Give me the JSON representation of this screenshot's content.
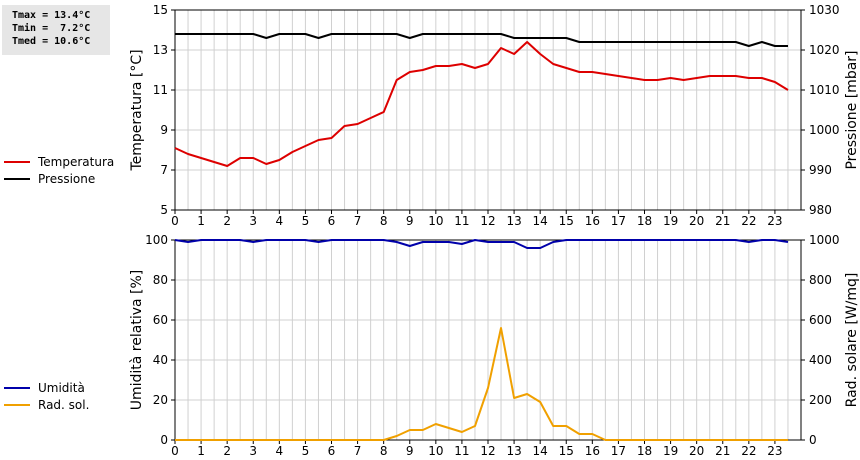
{
  "stats": {
    "tmax": "Tmax = 13.4°C",
    "tmin": "Tmin =  7.2°C",
    "tmed": "Tmed = 10.6°C"
  },
  "legend_top": [
    {
      "label": "Temperatura",
      "color": "#dd0000"
    },
    {
      "label": "Pressione",
      "color": "#000000"
    }
  ],
  "legend_bottom": [
    {
      "label": "Umidità",
      "color": "#0000aa"
    },
    {
      "label": "Rad. sol.",
      "color": "#f0a000"
    }
  ],
  "chart_data": [
    {
      "type": "line",
      "x_ticks": [
        "0",
        "1",
        "2",
        "3",
        "4",
        "5",
        "6",
        "7",
        "8",
        "9",
        "10",
        "11",
        "12",
        "13",
        "14",
        "15",
        "16",
        "17",
        "18",
        "19",
        "20",
        "21",
        "22",
        "23"
      ],
      "xlim": [
        0,
        24
      ],
      "ylabel_left": "Temperatura [°C]",
      "ylabel_right": "Pressione [mbar]",
      "ylim_left": [
        5,
        15
      ],
      "ylim_right": [
        980,
        1030
      ],
      "yticks_left": [
        5,
        7,
        9,
        11,
        13,
        15
      ],
      "yticks_right": [
        980,
        990,
        1000,
        1010,
        1020,
        1030
      ],
      "grid": true,
      "series": [
        {
          "name": "Temperatura",
          "axis": "left",
          "color": "#dd0000",
          "x": [
            0,
            0.5,
            1,
            1.5,
            2,
            2.5,
            3,
            3.5,
            4,
            4.5,
            5,
            5.5,
            6,
            6.5,
            7,
            7.5,
            8,
            8.5,
            9,
            9.5,
            10,
            10.5,
            11,
            11.5,
            12,
            12.5,
            13,
            13.5,
            14,
            14.5,
            15,
            15.5,
            16,
            16.5,
            17,
            17.5,
            18,
            18.5,
            19,
            19.5,
            20,
            20.5,
            21,
            21.5,
            22,
            22.5,
            23,
            23.5
          ],
          "y": [
            8.1,
            7.8,
            7.6,
            7.4,
            7.2,
            7.6,
            7.6,
            7.3,
            7.5,
            7.9,
            8.2,
            8.5,
            8.6,
            9.2,
            9.3,
            9.6,
            9.9,
            11.5,
            11.9,
            12.0,
            12.2,
            12.2,
            12.3,
            12.1,
            12.3,
            13.1,
            12.8,
            13.4,
            12.8,
            12.3,
            12.1,
            11.9,
            11.9,
            11.8,
            11.7,
            11.6,
            11.5,
            11.5,
            11.6,
            11.5,
            11.6,
            11.7,
            11.7,
            11.7,
            11.6,
            11.6,
            11.4,
            11.0
          ]
        },
        {
          "name": "Pressione",
          "axis": "right",
          "color": "#000000",
          "x": [
            0,
            0.5,
            1,
            1.5,
            2,
            2.5,
            3,
            3.5,
            4,
            4.5,
            5,
            5.5,
            6,
            6.5,
            7,
            7.5,
            8,
            8.5,
            9,
            9.5,
            10,
            10.5,
            11,
            11.5,
            12,
            12.5,
            13,
            13.5,
            14,
            14.5,
            15,
            15.5,
            16,
            16.5,
            17,
            17.5,
            18,
            18.5,
            19,
            19.5,
            20,
            20.5,
            21,
            21.5,
            22,
            22.5,
            23,
            23.5
          ],
          "y": [
            1024,
            1024,
            1024,
            1024,
            1024,
            1024,
            1024,
            1023,
            1024,
            1024,
            1024,
            1023,
            1024,
            1024,
            1024,
            1024,
            1024,
            1024,
            1023,
            1024,
            1024,
            1024,
            1024,
            1024,
            1024,
            1024,
            1023,
            1023,
            1023,
            1023,
            1023,
            1022,
            1022,
            1022,
            1022,
            1022,
            1022,
            1022,
            1022,
            1022,
            1022,
            1022,
            1022,
            1022,
            1021,
            1022,
            1021,
            1021
          ]
        }
      ]
    },
    {
      "type": "line",
      "x_ticks": [
        "0",
        "1",
        "2",
        "3",
        "4",
        "5",
        "6",
        "7",
        "8",
        "9",
        "10",
        "11",
        "12",
        "13",
        "14",
        "15",
        "16",
        "17",
        "18",
        "19",
        "20",
        "21",
        "22",
        "23"
      ],
      "xlim": [
        0,
        24
      ],
      "ylabel_left": "Umidità relativa [%]",
      "ylabel_right": "Rad. solare [W/mq]",
      "ylim_left": [
        0,
        100
      ],
      "ylim_right": [
        0,
        1000
      ],
      "yticks_left": [
        0,
        20,
        40,
        60,
        80,
        100
      ],
      "yticks_right": [
        0,
        200,
        400,
        600,
        800,
        1000
      ],
      "grid": true,
      "series": [
        {
          "name": "Umidità",
          "axis": "left",
          "color": "#0000aa",
          "x": [
            0,
            0.5,
            1,
            1.5,
            2,
            2.5,
            3,
            3.5,
            4,
            4.5,
            5,
            5.5,
            6,
            6.5,
            7,
            7.5,
            8,
            8.5,
            9,
            9.5,
            10,
            10.5,
            11,
            11.5,
            12,
            12.5,
            13,
            13.5,
            14,
            14.5,
            15,
            15.5,
            16,
            16.5,
            17,
            17.5,
            18,
            18.5,
            19,
            19.5,
            20,
            20.5,
            21,
            21.5,
            22,
            22.5,
            23,
            23.5
          ],
          "y": [
            100,
            99,
            100,
            100,
            100,
            100,
            99,
            100,
            100,
            100,
            100,
            99,
            100,
            100,
            100,
            100,
            100,
            99,
            97,
            99,
            99,
            99,
            98,
            100,
            99,
            99,
            99,
            96,
            96,
            99,
            100,
            100,
            100,
            100,
            100,
            100,
            100,
            100,
            100,
            100,
            100,
            100,
            100,
            100,
            99,
            100,
            100,
            99
          ]
        },
        {
          "name": "Rad. sol.",
          "axis": "right",
          "color": "#f0a000",
          "x": [
            0,
            0.5,
            1,
            1.5,
            2,
            2.5,
            3,
            3.5,
            4,
            4.5,
            5,
            5.5,
            6,
            6.5,
            7,
            7.5,
            8,
            8.5,
            9,
            9.5,
            10,
            10.5,
            11,
            11.5,
            12,
            12.5,
            13,
            13.5,
            14,
            14.5,
            15,
            15.5,
            16,
            16.5,
            17,
            17.5,
            18,
            18.5,
            19,
            19.5,
            20,
            20.5,
            21,
            21.5,
            22,
            22.5,
            23,
            23.5
          ],
          "y": [
            0,
            0,
            0,
            0,
            0,
            0,
            0,
            0,
            0,
            0,
            0,
            0,
            0,
            0,
            0,
            0,
            0,
            20,
            50,
            50,
            80,
            60,
            40,
            70,
            260,
            560,
            210,
            230,
            190,
            70,
            70,
            30,
            30,
            0,
            0,
            0,
            0,
            0,
            0,
            0,
            0,
            0,
            0,
            0,
            0,
            0,
            0,
            0
          ]
        }
      ]
    }
  ]
}
